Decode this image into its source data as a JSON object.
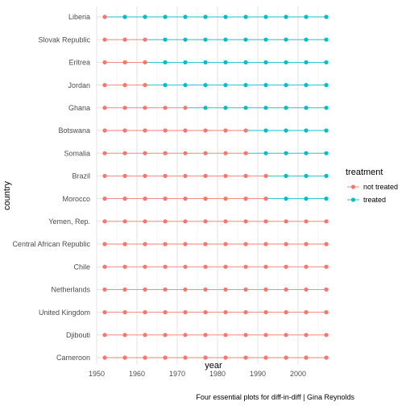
{
  "chart_data": {
    "type": "scatter",
    "title": "",
    "xlabel": "year",
    "ylabel": "country",
    "caption": "Four essential plots for diff-in-diff | Gina Reynolds",
    "xlim": [
      1950,
      2008
    ],
    "x_ticks": [
      1950,
      1960,
      1970,
      1980,
      1990,
      2000
    ],
    "x_tick_labels": [
      "1950",
      "1960",
      "1970",
      "1980",
      "1990",
      "2000"
    ],
    "years": [
      1952,
      1957,
      1962,
      1967,
      1972,
      1977,
      1982,
      1987,
      1992,
      1997,
      2002,
      2007
    ],
    "countries": [
      "Liberia",
      "Slovak Republic",
      "Eritrea",
      "Jordan",
      "Ghana",
      "Botswana",
      "Somalia",
      "Brazil",
      "Morocco",
      "Yemen, Rep.",
      "Central African Republic",
      "Chile",
      "Netherlands",
      "United Kingdom",
      "Djibouti",
      "Cameroon"
    ],
    "treatment_start_year": [
      1957,
      1967,
      1967,
      1967,
      1977,
      1992,
      1992,
      1997,
      1997,
      null,
      null,
      null,
      null,
      null,
      null,
      null
    ],
    "grid": true,
    "legend": {
      "title": "treatment",
      "position": "right",
      "entries": [
        {
          "label": "not treated",
          "color": "#F8766D"
        },
        {
          "label": "treated",
          "color": "#00BFC4"
        }
      ]
    }
  }
}
